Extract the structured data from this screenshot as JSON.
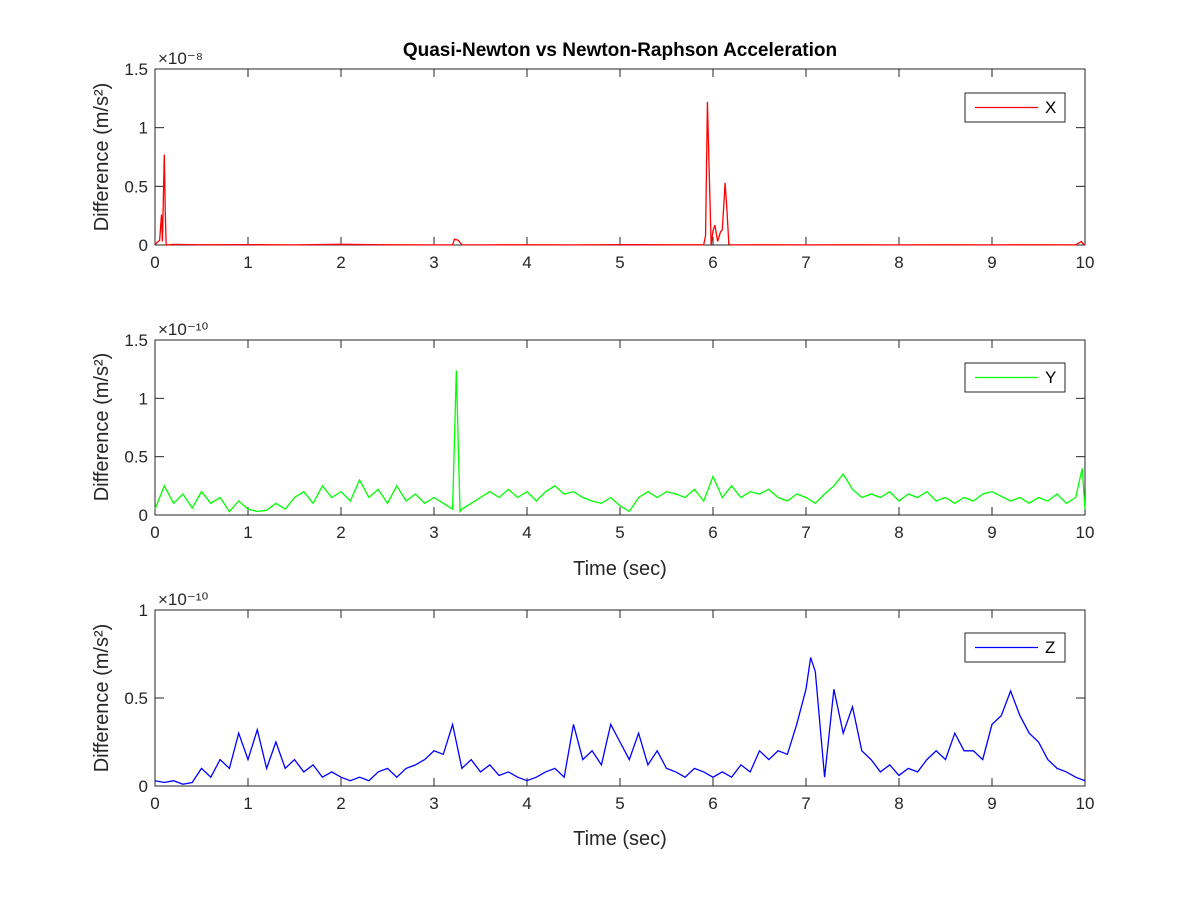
{
  "chart_data": [
    {
      "type": "line",
      "title": "Quasi-Newton vs Newton-Raphson Acceleration",
      "xlabel": "",
      "ylabel": "Difference (m/s²)",
      "xlim": [
        0,
        10
      ],
      "ylim": [
        0,
        1.5e-08
      ],
      "y_exponent_label": "×10⁻⁸",
      "x_ticks": [
        "0",
        "1",
        "2",
        "3",
        "4",
        "5",
        "6",
        "7",
        "8",
        "9",
        "10"
      ],
      "y_ticks": [
        "0",
        "0.5",
        "1",
        "1.5"
      ],
      "legend_position": "top-right",
      "grid": false,
      "series": [
        {
          "name": "X",
          "color": "#ff0000",
          "x": [
            0,
            0.02,
            0.05,
            0.07,
            0.08,
            0.09,
            0.1,
            0.11,
            0.12,
            0.2,
            0.5,
            1.0,
            1.5,
            2.0,
            2.5,
            3.0,
            3.2,
            3.22,
            3.26,
            3.3,
            3.5,
            4.0,
            4.5,
            5.0,
            5.5,
            5.9,
            5.92,
            5.94,
            5.96,
            5.98,
            6.0,
            6.02,
            6.05,
            6.08,
            6.1,
            6.13,
            6.15,
            6.17,
            6.19,
            6.21,
            6.25,
            6.5,
            7.0,
            7.5,
            8.0,
            8.5,
            9.0,
            9.5,
            9.9,
            9.96,
            9.98,
            10
          ],
          "y": [
            0,
            2e-10,
            4e-10,
            2.6e-09,
            3e-10,
            4e-09,
            7.7e-09,
            3e-09,
            0,
            5e-11,
            2e-11,
            3e-11,
            1e-11,
            6e-11,
            2e-11,
            1e-11,
            1e-11,
            5e-10,
            4e-10,
            2e-11,
            1e-11,
            2e-11,
            1e-11,
            3e-11,
            2e-11,
            2e-11,
            8e-10,
            1.22e-08,
            6e-09,
            2e-11,
            1.2e-09,
            1.7e-09,
            3e-10,
            1.1e-09,
            1.3e-09,
            5.3e-09,
            3e-09,
            1e-10,
            2e-11,
            1e-11,
            1e-11,
            2e-11,
            1e-11,
            2e-11,
            1e-11,
            2e-11,
            1e-11,
            2e-11,
            1e-11,
            3e-10,
            1e-10,
            0
          ]
        }
      ]
    },
    {
      "type": "line",
      "title": "",
      "xlabel": "Time (sec)",
      "ylabel": "Difference (m/s²)",
      "xlim": [
        0,
        10
      ],
      "ylim": [
        0,
        1.5e-10
      ],
      "y_exponent_label": "×10⁻¹⁰",
      "x_ticks": [
        "0",
        "1",
        "2",
        "3",
        "4",
        "5",
        "6",
        "7",
        "8",
        "9",
        "10"
      ],
      "y_ticks": [
        "0",
        "0.5",
        "1",
        "1.5"
      ],
      "legend_position": "top-right",
      "grid": false,
      "series": [
        {
          "name": "Y",
          "color": "#00ff00",
          "x": [
            0,
            0.1,
            0.2,
            0.3,
            0.4,
            0.5,
            0.6,
            0.7,
            0.8,
            0.9,
            1.0,
            1.1,
            1.2,
            1.3,
            1.4,
            1.5,
            1.6,
            1.7,
            1.8,
            1.9,
            2.0,
            2.1,
            2.2,
            2.3,
            2.4,
            2.5,
            2.6,
            2.7,
            2.8,
            2.9,
            3.0,
            3.1,
            3.2,
            3.24,
            3.28,
            3.3,
            3.4,
            3.5,
            3.6,
            3.7,
            3.8,
            3.9,
            4.0,
            4.1,
            4.2,
            4.3,
            4.4,
            4.5,
            4.6,
            4.7,
            4.8,
            4.9,
            5.0,
            5.1,
            5.2,
            5.3,
            5.4,
            5.5,
            5.6,
            5.7,
            5.8,
            5.9,
            6.0,
            6.1,
            6.2,
            6.3,
            6.4,
            6.5,
            6.6,
            6.7,
            6.8,
            6.9,
            7.0,
            7.1,
            7.2,
            7.3,
            7.4,
            7.5,
            7.6,
            7.7,
            7.8,
            7.9,
            8.0,
            8.1,
            8.2,
            8.3,
            8.4,
            8.5,
            8.6,
            8.7,
            8.8,
            8.9,
            9.0,
            9.1,
            9.2,
            9.3,
            9.4,
            9.5,
            9.6,
            9.7,
            9.8,
            9.9,
            9.97,
            10
          ],
          "y": [
            5e-12,
            2.5e-11,
            1e-11,
            1.8e-11,
            6e-12,
            2e-11,
            1e-11,
            1.5e-11,
            3e-12,
            1.2e-11,
            5e-12,
            3e-12,
            4e-12,
            1e-11,
            5e-12,
            1.5e-11,
            2e-11,
            1e-11,
            2.5e-11,
            1.5e-11,
            2e-11,
            1.2e-11,
            3e-11,
            1.5e-11,
            2.2e-11,
            1e-11,
            2.5e-11,
            1.2e-11,
            1.8e-11,
            1e-11,
            1.5e-11,
            1e-11,
            5e-12,
            1.24e-10,
            3e-12,
            5e-12,
            1e-11,
            1.5e-11,
            2e-11,
            1.5e-11,
            2.2e-11,
            1.5e-11,
            2e-11,
            1.2e-11,
            2e-11,
            2.5e-11,
            1.8e-11,
            2e-11,
            1.5e-11,
            1.2e-11,
            1e-11,
            1.5e-11,
            8e-12,
            3e-12,
            1.5e-11,
            2e-11,
            1.5e-11,
            2e-11,
            1.8e-11,
            1.5e-11,
            2.2e-11,
            1.2e-11,
            3.3e-11,
            1.5e-11,
            2.5e-11,
            1.5e-11,
            2e-11,
            1.8e-11,
            2.2e-11,
            1.5e-11,
            1.2e-11,
            1.8e-11,
            1.5e-11,
            1e-11,
            1.8e-11,
            2.5e-11,
            3.5e-11,
            2.2e-11,
            1.5e-11,
            1.8e-11,
            1.5e-11,
            2e-11,
            1.2e-11,
            1.8e-11,
            1.5e-11,
            2e-11,
            1.2e-11,
            1.5e-11,
            1e-11,
            1.5e-11,
            1.2e-11,
            1.8e-11,
            2e-11,
            1.6e-11,
            1.2e-11,
            1.5e-11,
            1e-11,
            1.5e-11,
            1.2e-11,
            1.8e-11,
            1e-11,
            1.5e-11,
            4e-11,
            5e-12
          ]
        }
      ]
    },
    {
      "type": "line",
      "title": "",
      "xlabel": "Time (sec)",
      "ylabel": "Difference (m/s²)",
      "xlim": [
        0,
        10
      ],
      "ylim": [
        0,
        1e-10
      ],
      "y_exponent_label": "×10⁻¹⁰",
      "x_ticks": [
        "0",
        "1",
        "2",
        "3",
        "4",
        "5",
        "6",
        "7",
        "8",
        "9",
        "10"
      ],
      "y_ticks": [
        "0",
        "0.5",
        "1"
      ],
      "legend_position": "top-right",
      "grid": false,
      "series": [
        {
          "name": "Z",
          "color": "#0000ff",
          "x": [
            0,
            0.1,
            0.2,
            0.3,
            0.4,
            0.5,
            0.6,
            0.7,
            0.8,
            0.9,
            1.0,
            1.1,
            1.2,
            1.3,
            1.4,
            1.5,
            1.6,
            1.7,
            1.8,
            1.9,
            2.0,
            2.1,
            2.2,
            2.3,
            2.4,
            2.5,
            2.6,
            2.7,
            2.8,
            2.9,
            3.0,
            3.1,
            3.2,
            3.3,
            3.4,
            3.5,
            3.6,
            3.7,
            3.8,
            3.9,
            4.0,
            4.1,
            4.2,
            4.3,
            4.4,
            4.5,
            4.6,
            4.7,
            4.8,
            4.9,
            5.0,
            5.1,
            5.2,
            5.3,
            5.4,
            5.5,
            5.6,
            5.7,
            5.8,
            5.9,
            6.0,
            6.1,
            6.2,
            6.3,
            6.4,
            6.5,
            6.6,
            6.7,
            6.8,
            6.9,
            7.0,
            7.05,
            7.1,
            7.2,
            7.3,
            7.4,
            7.5,
            7.6,
            7.7,
            7.8,
            7.9,
            8.0,
            8.1,
            8.2,
            8.3,
            8.4,
            8.5,
            8.6,
            8.7,
            8.8,
            8.9,
            9.0,
            9.1,
            9.2,
            9.3,
            9.4,
            9.5,
            9.6,
            9.7,
            9.8,
            9.9,
            10
          ],
          "y": [
            3e-12,
            2e-12,
            3e-12,
            1e-12,
            2e-12,
            1e-11,
            5e-12,
            1.5e-11,
            1e-11,
            3e-11,
            1.5e-11,
            3.2e-11,
            1e-11,
            2.5e-11,
            1e-11,
            1.5e-11,
            8e-12,
            1.2e-11,
            5e-12,
            8e-12,
            5e-12,
            3e-12,
            5e-12,
            3e-12,
            8e-12,
            1e-11,
            5e-12,
            1e-11,
            1.2e-11,
            1.5e-11,
            2e-11,
            1.8e-11,
            3.5e-11,
            1e-11,
            1.5e-11,
            8e-12,
            1.2e-11,
            6e-12,
            8e-12,
            5e-12,
            3e-12,
            5e-12,
            8e-12,
            1e-11,
            5e-12,
            3.5e-11,
            1.5e-11,
            2e-11,
            1.2e-11,
            3.5e-11,
            2.5e-11,
            1.5e-11,
            3e-11,
            1.2e-11,
            2e-11,
            1e-11,
            8e-12,
            5e-12,
            1e-11,
            8e-12,
            5e-12,
            8e-12,
            5e-12,
            1.2e-11,
            8e-12,
            2e-11,
            1.5e-11,
            2e-11,
            1.8e-11,
            3.5e-11,
            5.5e-11,
            7.3e-11,
            6.5e-11,
            5e-12,
            5.5e-11,
            3e-11,
            4.5e-11,
            2e-11,
            1.5e-11,
            8e-12,
            1.2e-11,
            6e-12,
            1e-11,
            8e-12,
            1.5e-11,
            2e-11,
            1.5e-11,
            3e-11,
            2e-11,
            2e-11,
            1.5e-11,
            3.5e-11,
            4e-11,
            5.4e-11,
            4e-11,
            3e-11,
            2.5e-11,
            1.5e-11,
            1e-11,
            8e-12,
            5e-12,
            3e-12
          ]
        }
      ]
    }
  ]
}
